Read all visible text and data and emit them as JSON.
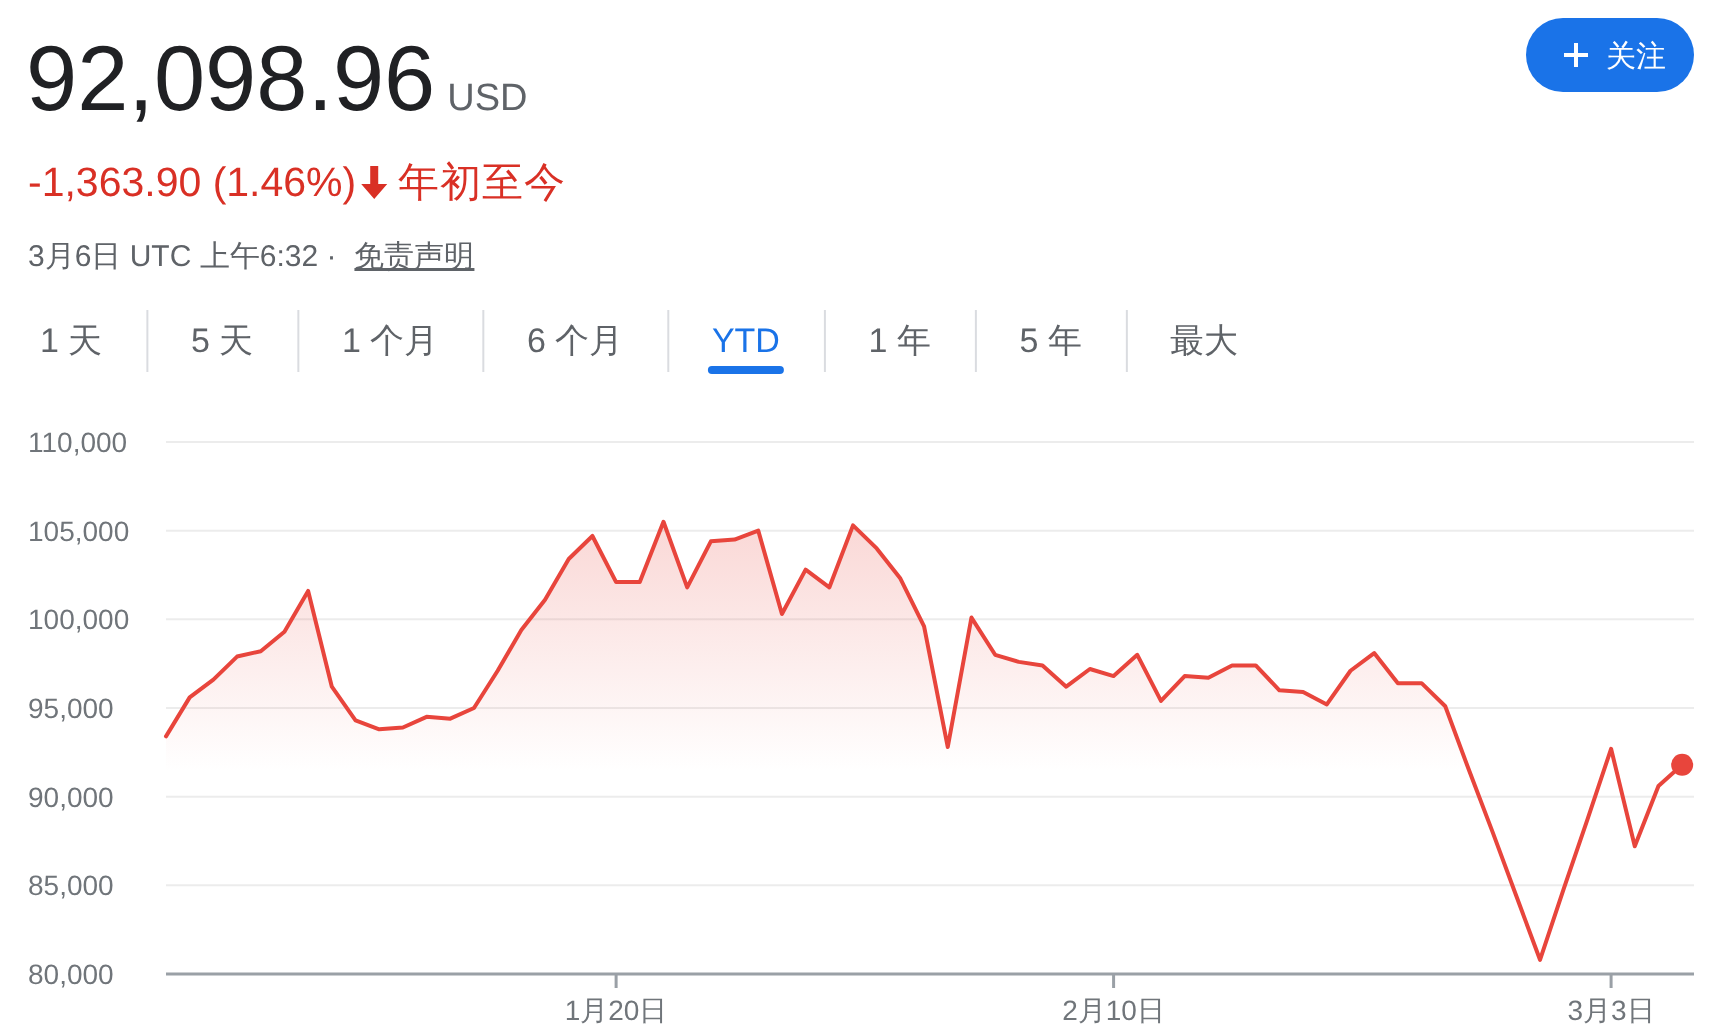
{
  "chart_data": {
    "type": "area",
    "title": "92,098.96",
    "annotations": [
      "USD",
      "-1,363.90 (1.46%)",
      "年初至今",
      "3月6日 UTC 上午6:32 ·",
      "免责声明",
      "关注",
      "1 天",
      "5 天",
      "1 个月",
      "6 个月",
      "YTD",
      "1 年",
      "5 年",
      "最大"
    ],
    "x": [
      "--01-01",
      "--01-02",
      "--01-03",
      "--01-04",
      "--01-05",
      "--01-06",
      "--01-07",
      "--01-08",
      "--01-09",
      "--01-10",
      "--01-11",
      "--01-12",
      "--01-13",
      "--01-14",
      "--01-15",
      "--01-16",
      "--01-17",
      "--01-18",
      "--01-19",
      "--01-20",
      "--01-21",
      "--01-22",
      "--01-23",
      "--01-24",
      "--01-25",
      "--01-26",
      "--01-27",
      "--01-28",
      "--01-29",
      "--01-30",
      "--01-31",
      "--02-01",
      "--02-02",
      "--02-03",
      "--02-04",
      "--02-05",
      "--02-06",
      "--02-07",
      "--02-08",
      "--02-09",
      "--02-10",
      "--02-11",
      "--02-12",
      "--02-13",
      "--02-14",
      "--02-15",
      "--02-16",
      "--02-17",
      "--02-18",
      "--02-19",
      "--02-20",
      "--02-21",
      "--02-22",
      "--02-23",
      "--02-24",
      "--02-25",
      "--02-26",
      "--02-27",
      "--02-28",
      "--03-01",
      "--03-02",
      "--03-03",
      "--03-04",
      "--03-05",
      "--03-06"
    ],
    "series": [
      {
        "color": "#e8453c",
        "values": [
          93400,
          95600,
          96600,
          97900,
          98200,
          99300,
          101600,
          96200,
          94300,
          93800,
          93900,
          94500,
          94400,
          95000,
          97100,
          99400,
          101100,
          103400,
          104700,
          102100,
          102100,
          105500,
          101800,
          104400,
          104500,
          105000,
          100300,
          102800,
          101800,
          105300,
          104000,
          102300,
          99600,
          92800,
          100100,
          98000,
          97600,
          97400,
          96200,
          97200,
          96800,
          98000,
          95400,
          96800,
          96700,
          97400,
          97400,
          96000,
          95900,
          95200,
          97100,
          98100,
          96400,
          96400,
          95100,
          91500,
          88000,
          84400,
          80800,
          84800,
          88700,
          92700,
          87200,
          90600,
          91800
        ]
      },
      {
        "type": "scatter",
        "color": "#e8453c",
        "x": [
          "--03-06"
        ],
        "values": [
          91800
        ]
      }
    ],
    "xlim": [
      "--01-01",
      "--03-06T12:00"
    ],
    "xticks": [
      {
        "value": "--01-20",
        "label": "1月20日"
      },
      {
        "value": "--02-10",
        "label": "2月10日"
      },
      {
        "value": "--03-03",
        "label": "3月3日"
      }
    ],
    "ylim": [
      80000,
      110000
    ],
    "yticks": [
      {
        "value": 80000,
        "label": "80,000"
      },
      {
        "value": 85000,
        "label": "85,000"
      },
      {
        "value": 90000,
        "label": "90,000"
      },
      {
        "value": 95000,
        "label": "95,000"
      },
      {
        "value": 100000,
        "label": "100,000"
      },
      {
        "value": 105000,
        "label": "105,000"
      },
      {
        "value": 110000,
        "label": "110,000"
      }
    ],
    "grid": "y"
  }
}
